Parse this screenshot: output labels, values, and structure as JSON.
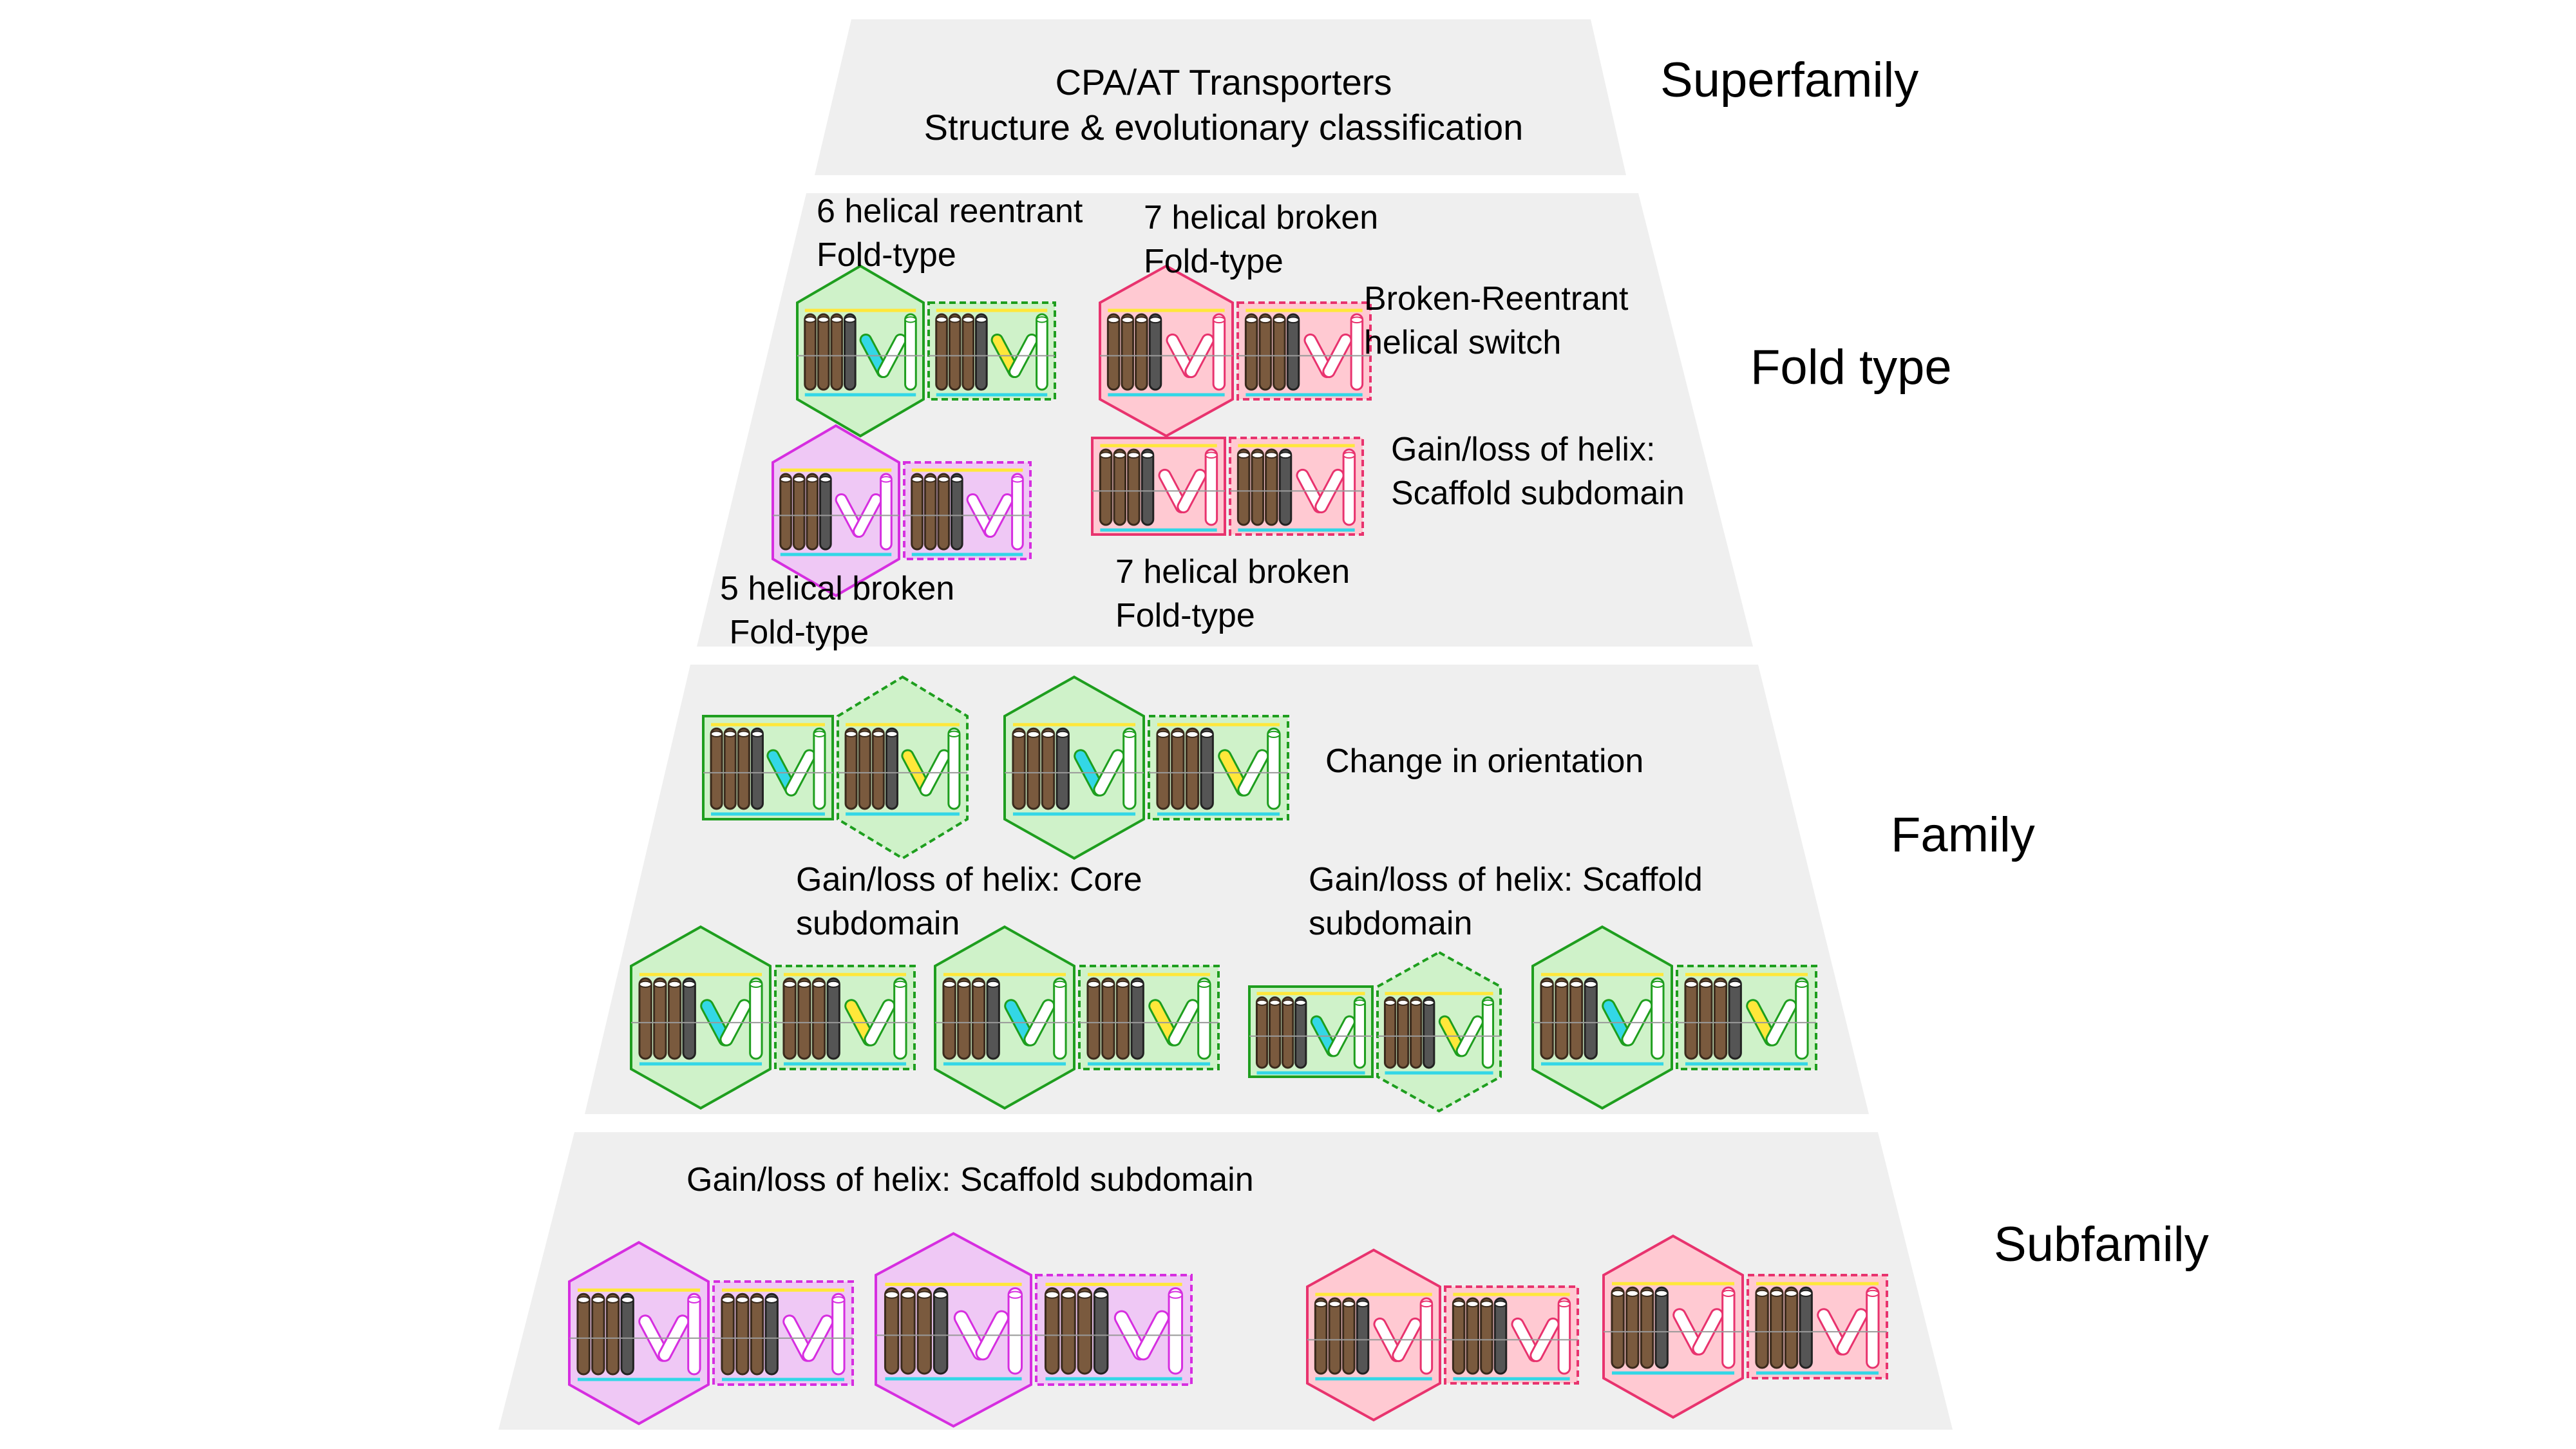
{
  "colors": {
    "tier_fill": "#efefef",
    "green_fill": "#cff2c9",
    "green_stroke": "#1e9e1e",
    "pink_fill": "#ffc9d2",
    "pink_stroke": "#e8336e",
    "magenta_fill": "#efc8f5",
    "magenta_stroke": "#d62ee0",
    "helix_brown": "#7a5a3e",
    "helix_dark": "#555555",
    "accent_yellow": "#ffe73a",
    "accent_cyan": "#33d7e6"
  },
  "tiers": {
    "superfamily": {
      "level_label": "Superfamily",
      "title": "CPA/AT Transporters",
      "subtitle": "Structure & evolutionary classification"
    },
    "fold_type": {
      "level_label": "Fold type",
      "labels": {
        "six_helical": "6 helical reentrant\nFold-type",
        "seven_helical_top": "7 helical broken\nFold-type",
        "broken_reentrant": "Broken-Reentrant\nhelical switch",
        "gain_loss_scaffold": "Gain/loss of helix:\nScaffold subdomain",
        "five_helical": "5 helical broken\n Fold-type",
        "seven_helical_bottom": "7 helical broken\nFold-type"
      },
      "topologies": [
        {
          "color": "green",
          "core": "hexagon",
          "scaffold": "box"
        },
        {
          "color": "pink",
          "core": "hexagon",
          "scaffold": "box"
        },
        {
          "color": "magenta",
          "core": "hexagon",
          "scaffold": "box"
        },
        {
          "color": "pink",
          "core": "box",
          "scaffold": "box"
        }
      ]
    },
    "family": {
      "level_label": "Family",
      "labels": {
        "orientation": "Change in orientation",
        "core": "Gain/loss of helix: Core\nsubdomain",
        "scaffold": "Gain/loss of helix: Scaffold\nsubdomain"
      },
      "topologies": [
        {
          "color": "green",
          "core": "box",
          "scaffold": "hexagon"
        },
        {
          "color": "green",
          "core": "hexagon",
          "scaffold": "box"
        },
        {
          "color": "green",
          "core": "hexagon",
          "scaffold": "box"
        },
        {
          "color": "green",
          "core": "hexagon",
          "scaffold": "box"
        },
        {
          "color": "green",
          "core": "box",
          "scaffold": "hexagon"
        },
        {
          "color": "green",
          "core": "hexagon",
          "scaffold": "box"
        }
      ]
    },
    "subfamily": {
      "level_label": "Subfamily",
      "labels": {
        "scaffold": "Gain/loss of helix: Scaffold subdomain"
      },
      "topologies": [
        {
          "color": "magenta",
          "core": "hexagon",
          "scaffold": "box"
        },
        {
          "color": "magenta",
          "core": "hexagon",
          "scaffold": "box"
        },
        {
          "color": "pink",
          "core": "hexagon",
          "scaffold": "box"
        },
        {
          "color": "pink",
          "core": "hexagon",
          "scaffold": "box"
        }
      ]
    }
  }
}
